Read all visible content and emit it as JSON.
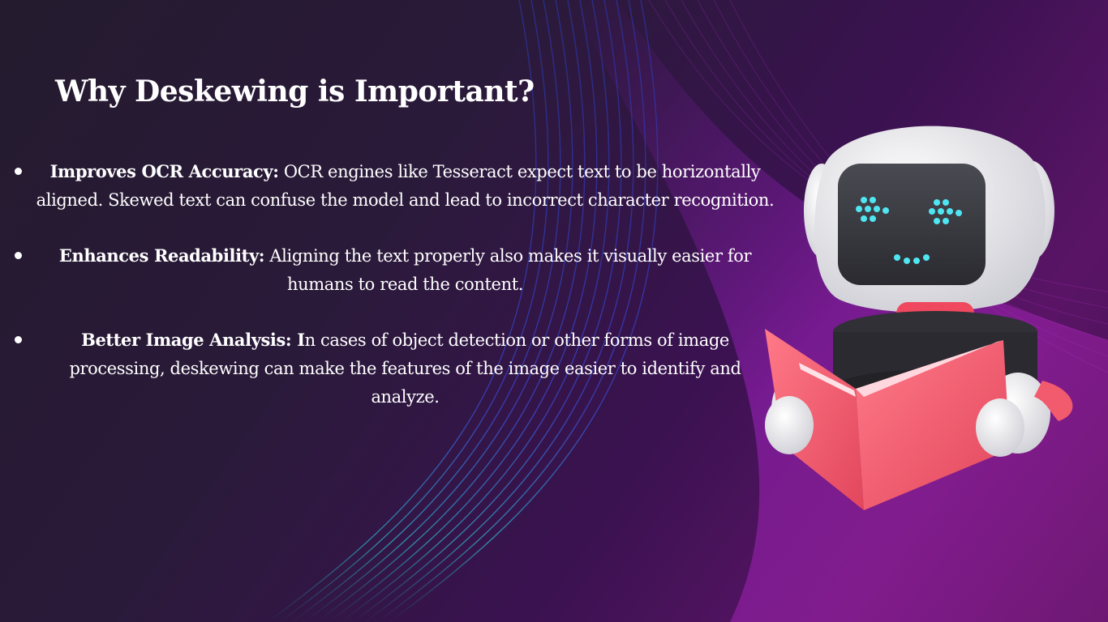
{
  "slide": {
    "title": "Why Deskewing is Important?",
    "bullets": [
      {
        "heading": "Improves OCR Accuracy:",
        "text": " OCR engines like Tesseract expect text to be horizontally aligned. Skewed text can confuse the model and lead to incorrect character recognition."
      },
      {
        "heading": "Enhances Readability:",
        "text": " Aligning the text properly also makes it visually easier for humans to read the content."
      },
      {
        "heading": "Better Image Analysis: I",
        "text": "n cases of object detection or other forms of image processing, deskewing can make the features of the image easier to identify and analyze."
      }
    ]
  },
  "colors": {
    "background": "#241b2e",
    "accent_cyan": "#3fd6e0",
    "accent_magenta": "#a020c0",
    "robot_book": "#f25a6e",
    "robot_face": "#3a3a40"
  },
  "icons": {
    "robot": "robot-reading-book-icon"
  }
}
